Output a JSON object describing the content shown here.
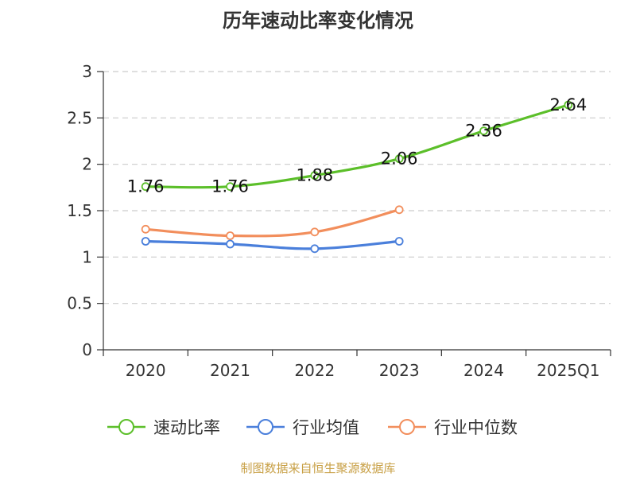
{
  "chart_data": {
    "type": "line",
    "title": "历年速动比率变化情况",
    "categories": [
      "2020",
      "2021",
      "2022",
      "2023",
      "2024",
      "2025Q1"
    ],
    "ylim": [
      0,
      3
    ],
    "yticks": [
      "0",
      "0.5",
      "1",
      "1.5",
      "2",
      "2.5",
      "3"
    ],
    "grid": true,
    "legend_position": "bottom",
    "series": [
      {
        "name": "速动比率",
        "color": "#5cbf2a",
        "values": [
          1.76,
          1.76,
          1.88,
          2.06,
          2.36,
          2.64
        ],
        "labels": [
          "1.76",
          "1.76",
          "1.88",
          "2.06",
          "2.36",
          "2.64"
        ]
      },
      {
        "name": "行业均值",
        "color": "#4a7fdb",
        "values": [
          1.17,
          1.14,
          1.09,
          1.17,
          null,
          null
        ]
      },
      {
        "name": "行业中位数",
        "color": "#f28e5c",
        "values": [
          1.3,
          1.23,
          1.27,
          1.51,
          null,
          null
        ]
      }
    ]
  },
  "footer": "制图数据来自恒生聚源数据库"
}
